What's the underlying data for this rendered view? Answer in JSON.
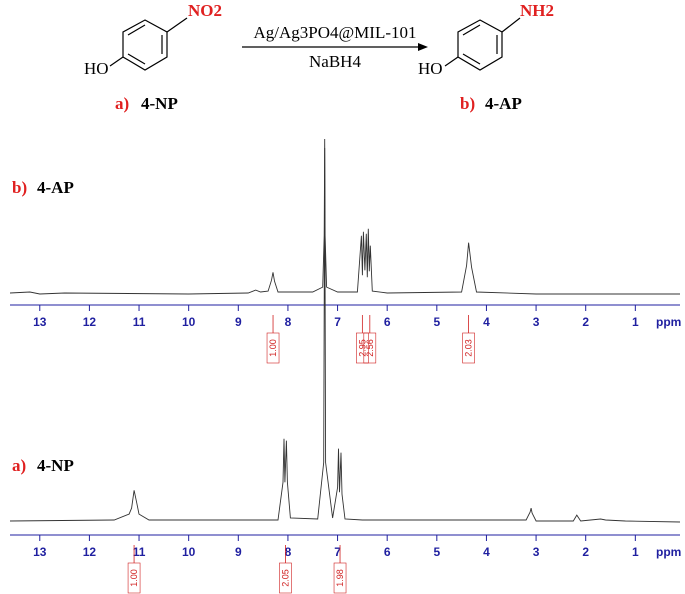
{
  "scheme": {
    "reactant": {
      "substituent": "NO2",
      "group": "HO",
      "panel": "a)",
      "name": "4-NP"
    },
    "product": {
      "substituent": "NH2",
      "group": "HO",
      "panel": "b)",
      "name": "4-AP"
    },
    "catalyst": "Ag/Ag3PO4@MIL-101",
    "reagent": "NaBH4"
  },
  "chart_data": [
    {
      "type": "line",
      "panel": "b)",
      "title": "4-AP",
      "x_label": "ppm",
      "color": "#333333",
      "xlim": [
        13.6,
        0.1
      ],
      "ylim": [
        0,
        160
      ],
      "xticks": [
        13,
        12,
        11,
        10,
        9,
        8,
        7,
        6,
        5,
        4,
        3,
        2,
        1
      ],
      "x": [
        13.6,
        13.2,
        13.0,
        12.5,
        10,
        8.8,
        8.65,
        8.55,
        8.4,
        8.33,
        8.3,
        8.27,
        8.2,
        7.5,
        7.3,
        7.27,
        7.26,
        7.25,
        7.22,
        7.0,
        6.6,
        6.52,
        6.5,
        6.48,
        6.45,
        6.42,
        6.4,
        6.38,
        6.36,
        6.34,
        6.3,
        6.0,
        4.5,
        4.4,
        4.36,
        4.3,
        4.2,
        3.0,
        1.0,
        0.1
      ],
      "values": [
        2,
        3,
        1,
        2,
        1,
        2,
        5,
        3,
        4,
        15,
        23,
        14,
        3,
        3,
        8,
        60,
        158,
        60,
        8,
        3,
        3,
        60,
        20,
        64,
        25,
        62,
        18,
        67,
        24,
        50,
        4,
        2,
        3,
        30,
        53,
        28,
        3,
        1,
        1,
        1
      ],
      "integrals": {
        "x": [
          8.3,
          6.5,
          6.35,
          4.36
        ],
        "values": [
          1.0,
          2.95,
          2.56,
          2.03
        ],
        "value_labels": [
          "1.00",
          "2.95",
          "2.56",
          "2.03"
        ]
      }
    },
    {
      "type": "line",
      "panel": "a)",
      "title": "4-NP",
      "x_label": "ppm",
      "color": "#333333",
      "xlim": [
        13.6,
        0.1
      ],
      "ylim": [
        0,
        380
      ],
      "xticks": [
        13,
        12,
        11,
        10,
        9,
        8,
        7,
        6,
        5,
        4,
        3,
        2,
        1
      ],
      "x": [
        13.6,
        11.5,
        11.2,
        11.15,
        11.1,
        11.05,
        11.0,
        10.8,
        8.2,
        8.1,
        8.08,
        8.06,
        8.03,
        8.01,
        7.95,
        7.4,
        7.28,
        7.26,
        7.24,
        7.1,
        7.0,
        6.98,
        6.96,
        6.93,
        6.91,
        6.85,
        6.5,
        3.2,
        3.12,
        3.1,
        3.08,
        3.0,
        2.25,
        2.18,
        2.1,
        1.7,
        1.6,
        1.2,
        0.1
      ],
      "values": [
        1,
        2,
        8,
        14,
        32,
        20,
        8,
        2,
        2,
        40,
        84,
        40,
        82,
        40,
        4,
        3,
        60,
        377,
        60,
        4,
        35,
        74,
        30,
        70,
        28,
        3,
        2,
        2,
        10,
        14,
        9,
        1,
        1,
        7,
        1,
        3,
        2,
        1,
        0
      ],
      "integrals": {
        "x": [
          11.1,
          8.05,
          6.95
        ],
        "values": [
          1.0,
          2.05,
          1.98
        ],
        "value_labels": [
          "1.00",
          "2.05",
          "1.98"
        ]
      }
    }
  ]
}
